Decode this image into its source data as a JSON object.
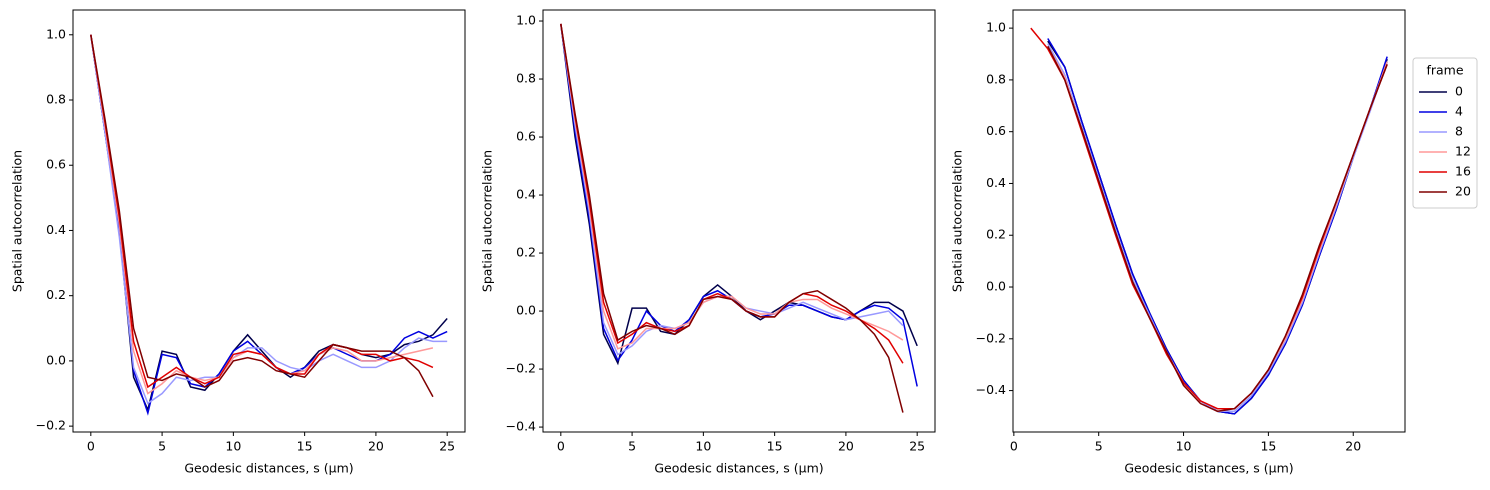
{
  "chart_data": [
    {
      "type": "line",
      "xlabel": "Geodesic distances, s (μm)",
      "ylabel": "Spatial autocorrelation",
      "x": [
        0,
        1,
        2,
        3,
        4,
        5,
        6,
        7,
        8,
        9,
        10,
        11,
        12,
        13,
        14,
        15,
        16,
        17,
        18,
        19,
        20,
        21,
        22,
        23,
        24,
        25
      ],
      "xlim": [
        -1.25,
        26.25
      ],
      "ylim": [
        -0.218,
        1.076
      ],
      "xticks": [
        0,
        5,
        10,
        15,
        20,
        25
      ],
      "yticks": [
        {
          "value": -0.2,
          "label": "−0.2"
        },
        {
          "value": 0,
          "label": "0.0"
        },
        0.2,
        0.4,
        0.6,
        0.8,
        {
          "value": 1,
          "label": "1.0"
        }
      ],
      "series": [
        {
          "name": "0",
          "color": "#00004c",
          "values": [
            1.0,
            0.7,
            0.4,
            -0.05,
            -0.15,
            0.03,
            0.02,
            -0.08,
            -0.09,
            -0.04,
            0.03,
            0.08,
            0.03,
            -0.02,
            -0.05,
            -0.02,
            0.03,
            0.05,
            0.04,
            0.02,
            0.01,
            0.02,
            0.05,
            0.06,
            0.08,
            0.13
          ]
        },
        {
          "name": "4",
          "color": "#0000e0",
          "values": [
            1.0,
            0.7,
            0.4,
            -0.03,
            -0.16,
            0.02,
            0.01,
            -0.07,
            -0.08,
            -0.04,
            0.03,
            0.06,
            0.02,
            -0.02,
            -0.04,
            -0.02,
            0.02,
            0.04,
            0.02,
            0.0,
            0.0,
            0.02,
            0.07,
            0.09,
            0.07,
            0.09
          ]
        },
        {
          "name": "8",
          "color": "#9999ff",
          "values": [
            1.0,
            0.7,
            0.38,
            -0.02,
            -0.13,
            -0.1,
            -0.05,
            -0.06,
            -0.05,
            -0.05,
            0.01,
            0.04,
            0.04,
            0.0,
            -0.02,
            -0.03,
            0.0,
            0.02,
            0.0,
            -0.02,
            -0.02,
            0.0,
            0.04,
            0.07,
            0.06,
            0.06
          ]
        },
        {
          "name": "12",
          "color": "#ff9999",
          "values": [
            1.0,
            0.72,
            0.42,
            0.03,
            -0.1,
            -0.07,
            -0.03,
            -0.05,
            -0.06,
            -0.05,
            0.01,
            0.03,
            0.02,
            -0.02,
            -0.04,
            -0.03,
            0.02,
            0.04,
            0.03,
            0.0,
            0.0,
            0.01,
            0.02,
            0.03,
            0.04,
            null
          ]
        },
        {
          "name": "16",
          "color": "#e00000",
          "values": [
            1.0,
            0.73,
            0.44,
            0.06,
            -0.08,
            -0.05,
            -0.02,
            -0.05,
            -0.07,
            -0.05,
            0.02,
            0.03,
            0.02,
            -0.02,
            -0.04,
            -0.04,
            0.02,
            0.05,
            0.04,
            0.02,
            0.02,
            0.0,
            0.01,
            0.0,
            -0.02,
            null
          ]
        },
        {
          "name": "20",
          "color": "#800000",
          "values": [
            1.0,
            0.74,
            0.46,
            0.1,
            -0.05,
            -0.06,
            -0.04,
            -0.05,
            -0.08,
            -0.06,
            0.0,
            0.01,
            0.0,
            -0.03,
            -0.04,
            -0.05,
            0.0,
            0.05,
            0.04,
            0.03,
            0.03,
            0.03,
            0.01,
            -0.03,
            -0.11,
            null
          ]
        }
      ]
    },
    {
      "type": "line",
      "xlabel": "Geodesic distances, s (μm)",
      "ylabel": "Spatial autocorrelation",
      "x": [
        0,
        1,
        2,
        3,
        4,
        5,
        6,
        7,
        8,
        9,
        10,
        11,
        12,
        13,
        14,
        15,
        16,
        17,
        18,
        19,
        20,
        21,
        22,
        23,
        24,
        25
      ],
      "xlim": [
        -1.25,
        26.25
      ],
      "ylim": [
        -0.417,
        1.038
      ],
      "xticks": [
        0,
        5,
        10,
        15,
        20,
        25
      ],
      "yticks": [
        {
          "value": -0.4,
          "label": "−0.4"
        },
        {
          "value": -0.2,
          "label": "−0.2"
        },
        {
          "value": 0,
          "label": "0.0"
        },
        0.2,
        0.4,
        0.6,
        0.8,
        {
          "value": 1,
          "label": "1.0"
        }
      ],
      "series": [
        {
          "name": "0",
          "color": "#00004c",
          "values": [
            0.99,
            0.6,
            0.3,
            -0.08,
            -0.18,
            0.01,
            0.01,
            -0.07,
            -0.08,
            -0.03,
            0.05,
            0.09,
            0.05,
            0.0,
            -0.03,
            0.0,
            0.03,
            0.02,
            0.0,
            -0.02,
            -0.03,
            0.0,
            0.03,
            0.03,
            0.0,
            -0.12
          ]
        },
        {
          "name": "4",
          "color": "#0000e0",
          "values": [
            0.99,
            0.62,
            0.32,
            -0.06,
            -0.17,
            -0.1,
            0.0,
            -0.05,
            -0.07,
            -0.03,
            0.05,
            0.07,
            0.04,
            0.0,
            -0.02,
            -0.01,
            0.02,
            0.02,
            0.0,
            -0.02,
            -0.03,
            0.0,
            0.02,
            0.01,
            -0.03,
            -0.26
          ]
        },
        {
          "name": "8",
          "color": "#9999ff",
          "values": [
            0.99,
            0.64,
            0.34,
            -0.04,
            -0.15,
            -0.12,
            -0.07,
            -0.05,
            -0.06,
            -0.04,
            0.03,
            0.05,
            0.05,
            0.01,
            0.0,
            -0.01,
            0.01,
            0.03,
            0.01,
            -0.01,
            -0.03,
            -0.02,
            -0.01,
            0.0,
            -0.05,
            null
          ]
        },
        {
          "name": "12",
          "color": "#ff9999",
          "values": [
            0.99,
            0.66,
            0.36,
            0.0,
            -0.13,
            -0.11,
            -0.06,
            -0.06,
            -0.06,
            -0.04,
            0.03,
            0.05,
            0.05,
            0.01,
            -0.01,
            -0.01,
            0.03,
            0.04,
            0.04,
            0.01,
            -0.01,
            -0.03,
            -0.05,
            -0.07,
            -0.1,
            null
          ]
        },
        {
          "name": "16",
          "color": "#e00000",
          "values": [
            0.99,
            0.67,
            0.38,
            0.03,
            -0.11,
            -0.08,
            -0.04,
            -0.06,
            -0.07,
            -0.05,
            0.04,
            0.06,
            0.04,
            0.0,
            -0.02,
            -0.02,
            0.03,
            0.06,
            0.05,
            0.02,
            0.0,
            -0.03,
            -0.06,
            -0.1,
            -0.18,
            null
          ]
        },
        {
          "name": "20",
          "color": "#800000",
          "values": [
            0.99,
            0.68,
            0.4,
            0.06,
            -0.1,
            -0.07,
            -0.05,
            -0.06,
            -0.08,
            -0.05,
            0.04,
            0.05,
            0.04,
            0.0,
            -0.02,
            -0.02,
            0.03,
            0.06,
            0.07,
            0.04,
            0.01,
            -0.03,
            -0.08,
            -0.16,
            -0.35,
            null
          ]
        }
      ]
    },
    {
      "type": "line",
      "xlabel": "Geodesic distances, s (μm)",
      "ylabel": "Spatial autocorrelation",
      "x": [
        1,
        2,
        3,
        4,
        5,
        6,
        7,
        8,
        9,
        10,
        11,
        12,
        13,
        14,
        15,
        16,
        17,
        18,
        19,
        20,
        21,
        22
      ],
      "xlim": [
        -0.05,
        23.05
      ],
      "ylim": [
        -0.56,
        1.07
      ],
      "xticks": [
        0,
        5,
        10,
        15,
        20
      ],
      "yticks": [
        {
          "value": -0.4,
          "label": "−0.4"
        },
        {
          "value": -0.2,
          "label": "−0.2"
        },
        {
          "value": 0,
          "label": "0.0"
        },
        0.2,
        0.4,
        0.6,
        0.8,
        {
          "value": 1,
          "label": "1.0"
        }
      ],
      "legend_title": "frame",
      "legend_loc": "center left outside",
      "series": [
        {
          "name": "0",
          "color": "#00004c",
          "values": [
            null,
            0.95,
            0.85,
            0.64,
            0.44,
            0.24,
            0.05,
            -0.1,
            -0.24,
            -0.36,
            -0.44,
            -0.48,
            -0.49,
            -0.43,
            -0.34,
            -0.22,
            -0.07,
            0.12,
            0.3,
            0.5,
            0.69,
            0.88
          ]
        },
        {
          "name": "4",
          "color": "#0000e0",
          "values": [
            null,
            0.96,
            0.85,
            0.64,
            0.44,
            0.24,
            0.05,
            -0.1,
            -0.24,
            -0.36,
            -0.44,
            -0.48,
            -0.49,
            -0.43,
            -0.34,
            -0.22,
            -0.07,
            0.12,
            0.3,
            0.5,
            0.69,
            0.89
          ]
        },
        {
          "name": "8",
          "color": "#9999ff",
          "values": [
            null,
            0.94,
            0.82,
            0.62,
            0.42,
            0.22,
            0.03,
            -0.11,
            -0.25,
            -0.37,
            -0.44,
            -0.48,
            -0.48,
            -0.42,
            -0.33,
            -0.21,
            -0.06,
            0.13,
            0.31,
            0.5,
            0.68,
            0.87
          ]
        },
        {
          "name": "12",
          "color": "#ff9999",
          "values": [
            null,
            0.93,
            0.81,
            0.61,
            0.41,
            0.21,
            0.02,
            -0.12,
            -0.25,
            -0.37,
            -0.44,
            -0.47,
            -0.47,
            -0.41,
            -0.32,
            -0.2,
            -0.05,
            0.14,
            0.32,
            0.51,
            0.69,
            0.87
          ]
        },
        {
          "name": "16",
          "color": "#e00000",
          "values": [
            1.0,
            0.92,
            0.8,
            0.6,
            0.4,
            0.2,
            0.01,
            -0.12,
            -0.26,
            -0.37,
            -0.44,
            -0.47,
            -0.47,
            -0.41,
            -0.32,
            -0.19,
            -0.04,
            0.15,
            0.33,
            0.51,
            0.69,
            0.86
          ]
        },
        {
          "name": "20",
          "color": "#800000",
          "values": [
            null,
            0.93,
            0.8,
            0.61,
            0.41,
            0.21,
            0.02,
            -0.12,
            -0.25,
            -0.38,
            -0.45,
            -0.48,
            -0.47,
            -0.41,
            -0.32,
            -0.19,
            -0.03,
            0.16,
            0.33,
            0.51,
            0.69,
            0.86
          ]
        }
      ]
    }
  ]
}
